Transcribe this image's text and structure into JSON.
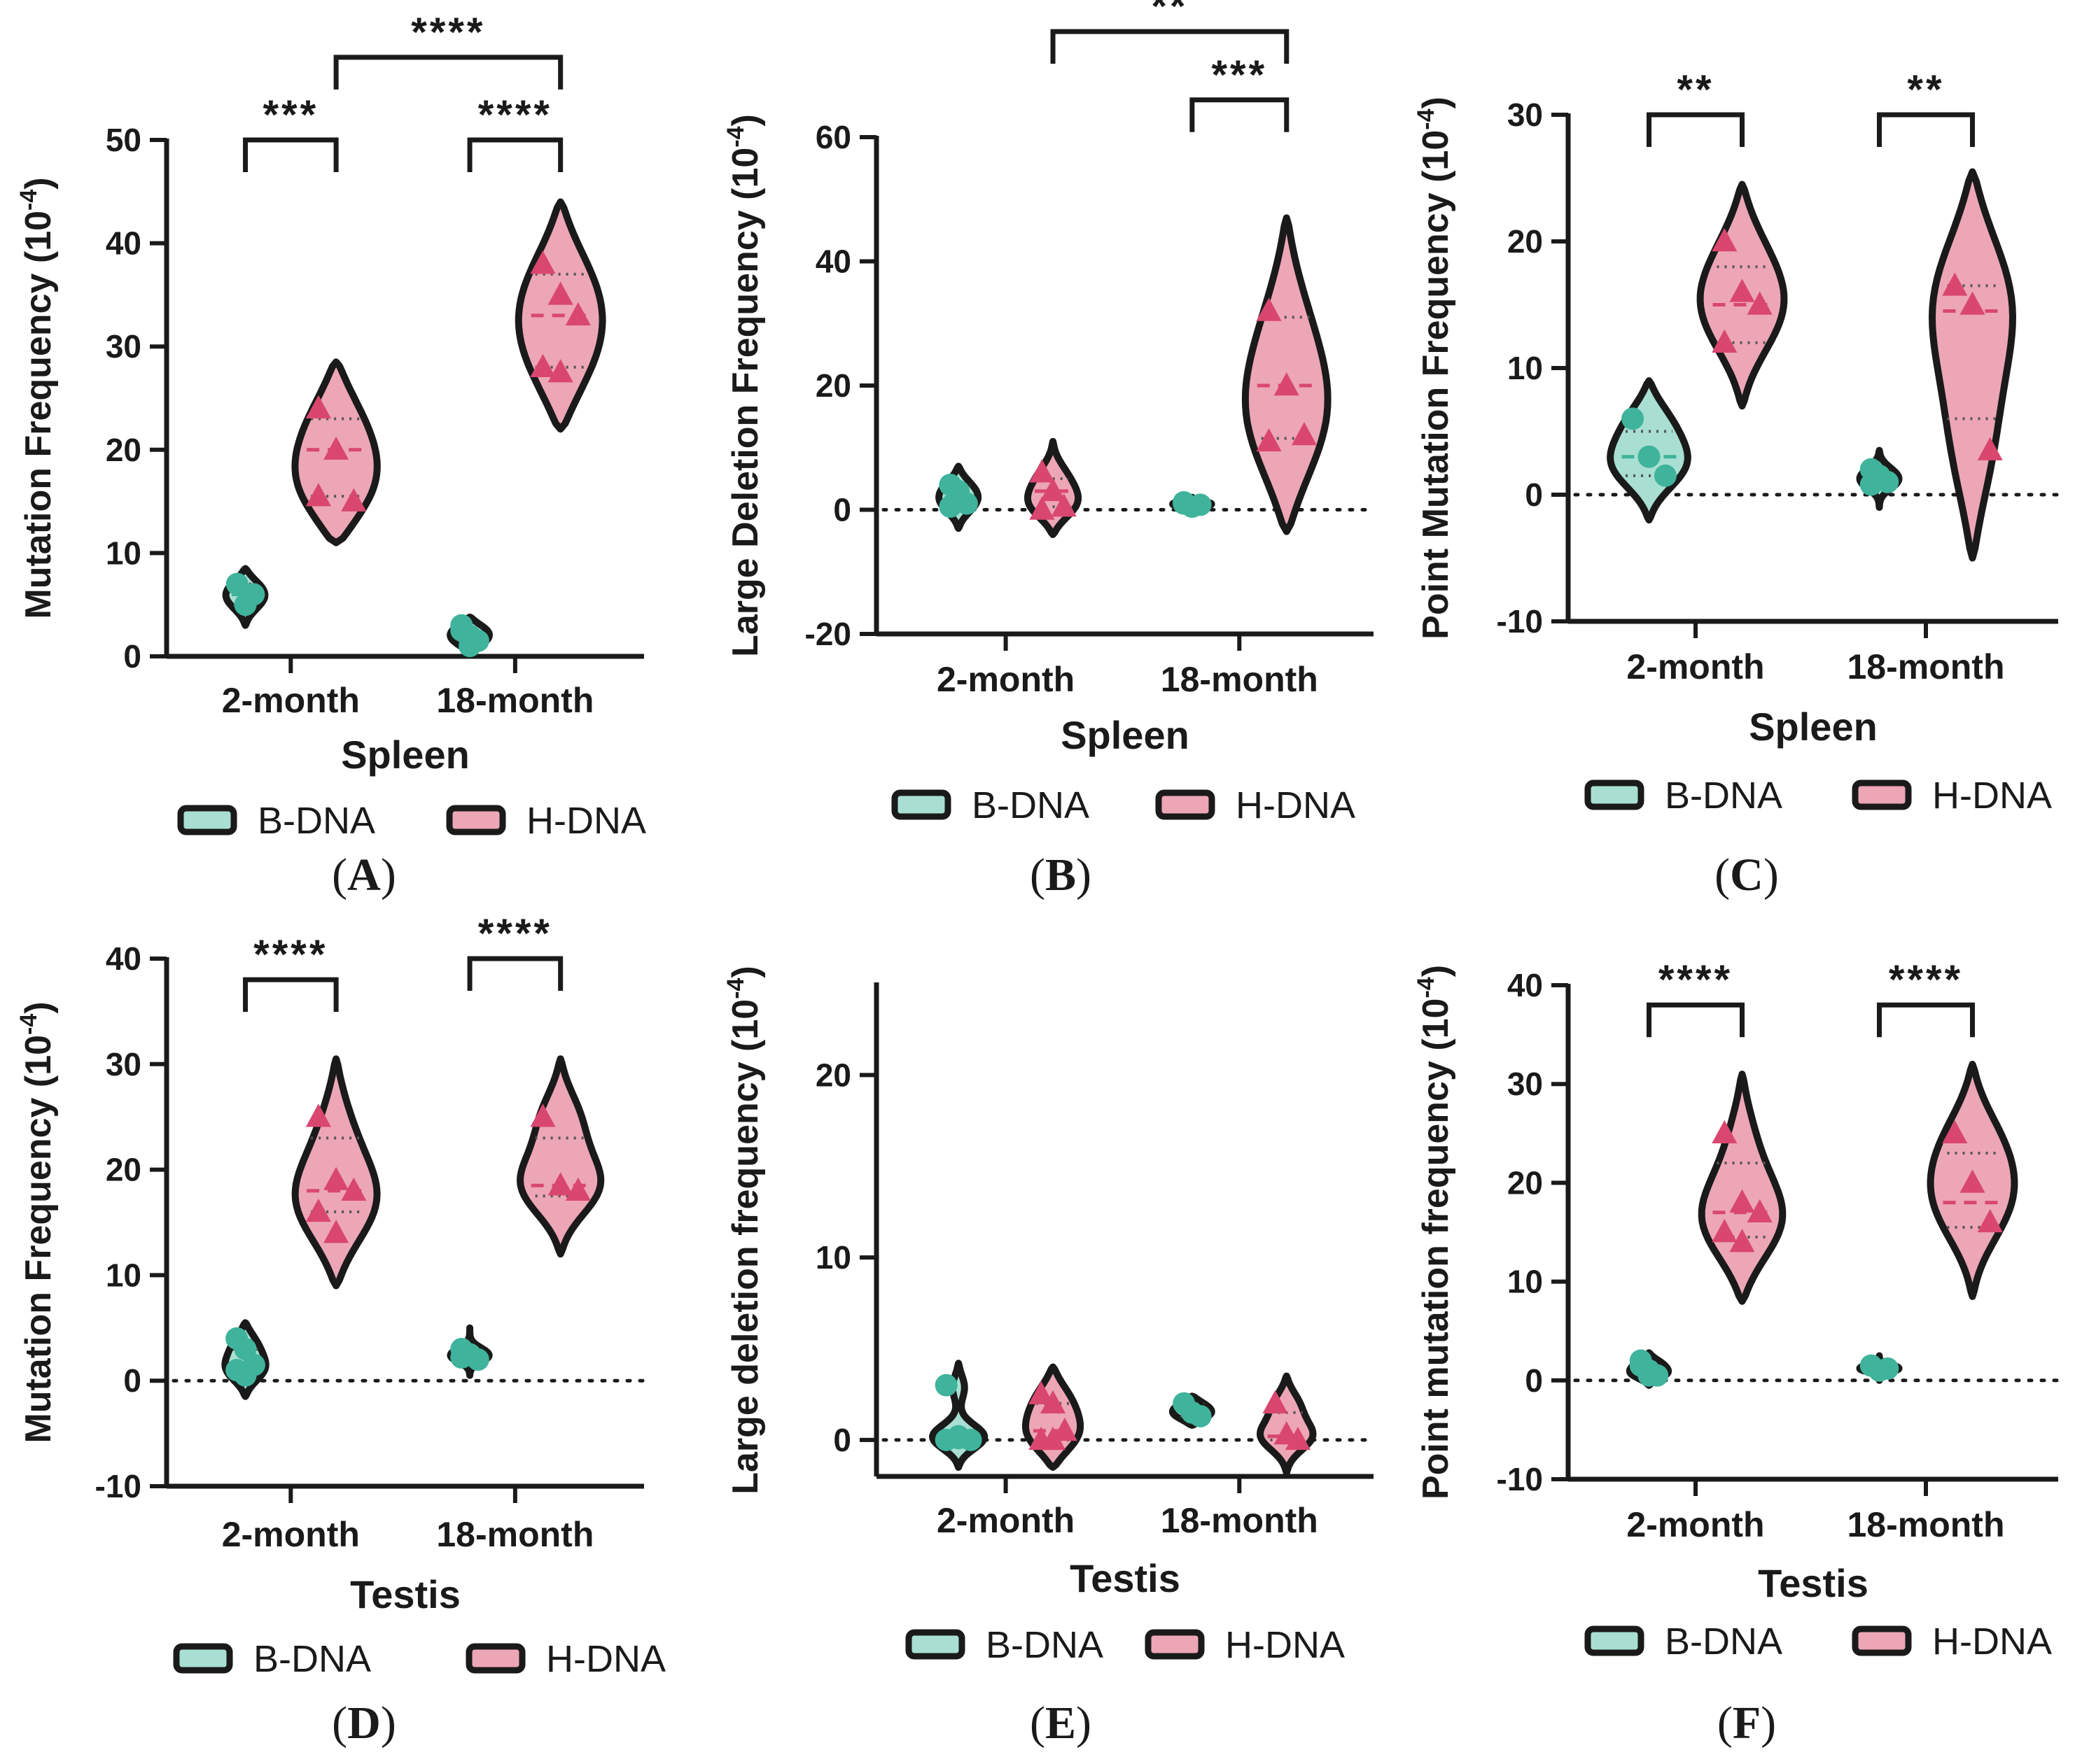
{
  "colors": {
    "b_dna_fill": "#a8dfd2",
    "b_dna_point": "#3fb39b",
    "h_dna_fill": "#eda6b6",
    "h_dna_point": "#d9476f",
    "axis": "#1a1a1a"
  },
  "legend": {
    "b_label": "B-DNA",
    "h_label": "H-DNA"
  },
  "chart_data": [
    {
      "panel": "A",
      "type": "violin",
      "ylabel": "Mutation Frequency (10",
      "ylabel_exp": "-4",
      "ylabel_close": ")",
      "xlabel": "Spleen",
      "ylim": [
        0,
        50
      ],
      "yticks": [
        0,
        10,
        20,
        30,
        40,
        50
      ],
      "yticks_text": [
        "0",
        "10",
        "20",
        "30",
        "40",
        "50"
      ],
      "categories": [
        "2-month",
        "18-month"
      ],
      "series": [
        {
          "name": "B-DNA",
          "groups": [
            {
              "points": [
                7,
                5,
                6
              ],
              "median": 6,
              "q1": 5,
              "q3": 7,
              "extent": [
                3,
                8.5
              ]
            },
            {
              "points": [
                3,
                2,
                1.5,
                2.5,
                1
              ],
              "median": 2,
              "q1": 1.5,
              "q3": 2.8,
              "extent": [
                0.5,
                3.8
              ]
            }
          ]
        },
        {
          "name": "H-DNA",
          "groups": [
            {
              "points": [
                24,
                20,
                15,
                15.5
              ],
              "median": 20,
              "q1": 15.5,
              "q3": 23,
              "extent": [
                11,
                28.5
              ]
            },
            {
              "points": [
                38,
                35,
                33,
                28,
                27.5
              ],
              "median": 33,
              "q1": 28,
              "q3": 37,
              "extent": [
                22,
                44
              ]
            }
          ]
        }
      ],
      "zero_line": false,
      "brackets": [
        {
          "from": [
            0,
            0
          ],
          "to": [
            0,
            1
          ],
          "level": 50,
          "stars": "***"
        },
        {
          "from": [
            1,
            0
          ],
          "to": [
            1,
            1
          ],
          "level": 50,
          "stars": "****"
        },
        {
          "from": [
            0,
            1
          ],
          "to": [
            1,
            1
          ],
          "level": 58,
          "stars": "****"
        }
      ],
      "label_prefix": "(",
      "label_letter": "A",
      "label_suffix": ")"
    },
    {
      "panel": "B",
      "type": "violin",
      "ylabel": "Large Deletion Frequency (10",
      "ylabel_exp": "-4",
      "ylabel_close": ")",
      "xlabel": "Spleen",
      "ylim": [
        -20,
        60
      ],
      "yticks": [
        -20,
        0,
        20,
        40,
        60
      ],
      "yticks_text": [
        "-20",
        "0",
        "20",
        "40",
        "60"
      ],
      "categories": [
        "2-month",
        "18-month"
      ],
      "series": [
        {
          "name": "B-DNA",
          "groups": [
            {
              "points": [
                4,
                3,
                1,
                0.5
              ],
              "median": 2,
              "q1": 0.5,
              "q3": 4,
              "extent": [
                -3,
                7
              ]
            },
            {
              "points": [
                1,
                0.5,
                0.8,
                1.2
              ],
              "median": 0.8,
              "q1": 0.5,
              "q3": 1.1,
              "extent": [
                0,
                2
              ]
            }
          ]
        },
        {
          "name": "H-DNA",
          "groups": [
            {
              "points": [
                6,
                3,
                0.5,
                0
              ],
              "median": 3,
              "q1": 0.5,
              "q3": 5,
              "extent": [
                -4,
                11
              ]
            },
            {
              "points": [
                32,
                20,
                12,
                11
              ],
              "median": 20,
              "q1": 11.5,
              "q3": 31,
              "extent": [
                -3.5,
                47
              ]
            }
          ]
        }
      ],
      "zero_line": true,
      "brackets": [
        {
          "from": [
            1,
            0
          ],
          "to": [
            1,
            1
          ],
          "level": 66,
          "stars": "***"
        },
        {
          "from": [
            0,
            1
          ],
          "to": [
            1,
            1
          ],
          "level": 77,
          "stars": "**"
        }
      ],
      "label_prefix": "(",
      "label_letter": "B",
      "label_suffix": ")"
    },
    {
      "panel": "C",
      "type": "violin",
      "ylabel": "Point Mutation Frequency (10",
      "ylabel_exp": "-4",
      "ylabel_close": ")",
      "xlabel": "Spleen",
      "ylim": [
        -10,
        30
      ],
      "yticks": [
        -10,
        0,
        10,
        20,
        30
      ],
      "yticks_text": [
        "-10",
        "0",
        "10",
        "20",
        "30"
      ],
      "categories": [
        "2-month",
        "18-month"
      ],
      "series": [
        {
          "name": "B-DNA",
          "groups": [
            {
              "points": [
                6,
                3,
                1.5
              ],
              "median": 3,
              "q1": 1.5,
              "q3": 5,
              "extent": [
                -2,
                9
              ]
            },
            {
              "points": [
                2,
                1.5,
                1,
                0.8
              ],
              "median": 1.2,
              "q1": 0.8,
              "q3": 2,
              "extent": [
                -1,
                3.5
              ]
            }
          ]
        },
        {
          "name": "H-DNA",
          "groups": [
            {
              "points": [
                20,
                16,
                15,
                12
              ],
              "median": 15,
              "q1": 12,
              "q3": 18,
              "extent": [
                7,
                24.5
              ]
            },
            {
              "points": [
                16.5,
                15,
                3.5
              ],
              "median": 14.5,
              "q1": 6,
              "q3": 16.5,
              "extent": [
                -5,
                25.5
              ]
            }
          ]
        }
      ],
      "zero_line": true,
      "brackets": [
        {
          "from": [
            0,
            0
          ],
          "to": [
            0,
            1
          ],
          "level": 30,
          "stars": "**"
        },
        {
          "from": [
            1,
            0
          ],
          "to": [
            1,
            1
          ],
          "level": 30,
          "stars": "**"
        }
      ],
      "label_prefix": "(",
      "label_letter": "C",
      "label_suffix": ")"
    },
    {
      "panel": "D",
      "type": "violin",
      "ylabel": "Mutation Frequency (10",
      "ylabel_exp": "-4",
      "ylabel_close": ")",
      "xlabel": "Testis",
      "ylim": [
        -10,
        40
      ],
      "yticks": [
        -10,
        0,
        10,
        20,
        30,
        40
      ],
      "yticks_text": [
        "-10",
        "0",
        "10",
        "20",
        "30",
        "40"
      ],
      "categories": [
        "2-month",
        "18-month"
      ],
      "series": [
        {
          "name": "B-DNA",
          "groups": [
            {
              "points": [
                4,
                3,
                1.5,
                1,
                0.5
              ],
              "median": 1.5,
              "q1": 0.8,
              "q3": 3,
              "extent": [
                -1.5,
                5.5
              ]
            },
            {
              "points": [
                3,
                2.5,
                2,
                2.2
              ],
              "median": 2.5,
              "q1": 2,
              "q3": 3,
              "extent": [
                0.5,
                5
              ]
            }
          ]
        },
        {
          "name": "H-DNA",
          "groups": [
            {
              "points": [
                25,
                19,
                18,
                16,
                14
              ],
              "median": 18,
              "q1": 16,
              "q3": 23,
              "extent": [
                9,
                30.5
              ]
            },
            {
              "points": [
                25,
                18.5,
                18
              ],
              "median": 18.5,
              "q1": 17.5,
              "q3": 23,
              "extent": [
                12,
                30.5
              ]
            }
          ]
        }
      ],
      "zero_line": true,
      "brackets": [
        {
          "from": [
            0,
            0
          ],
          "to": [
            0,
            1
          ],
          "level": 38,
          "stars": "****"
        },
        {
          "from": [
            1,
            0
          ],
          "to": [
            1,
            1
          ],
          "level": 40,
          "stars": "****"
        }
      ],
      "label_prefix": "(",
      "label_letter": "D",
      "label_suffix": ")"
    },
    {
      "panel": "E",
      "type": "violin",
      "ylabel": "Large deletion frequency (10",
      "ylabel_exp": "-4",
      "ylabel_close": ")",
      "xlabel": "Testis",
      "ylim": [
        -2,
        25
      ],
      "yticks": [
        0,
        10,
        20
      ],
      "yticks_text": [
        "0",
        "10",
        "20"
      ],
      "categories": [
        "2-month",
        "18-month"
      ],
      "series": [
        {
          "name": "B-DNA",
          "groups": [
            {
              "points": [
                3,
                0.2,
                0,
                0,
                0.1
              ],
              "median": 0.1,
              "q1": 0,
              "q3": 0.5,
              "extent": [
                -1.5,
                4.2
              ]
            },
            {
              "points": [
                2,
                1.5,
                1.3
              ],
              "median": 1.6,
              "q1": 1.3,
              "q3": 2,
              "extent": [
                0.8,
                2.4
              ]
            }
          ]
        },
        {
          "name": "H-DNA",
          "groups": [
            {
              "points": [
                2.5,
                2,
                0.5,
                0,
                0
              ],
              "median": 0.5,
              "q1": 0,
              "q3": 2,
              "extent": [
                -1.5,
                4
              ]
            },
            {
              "points": [
                2,
                0.3,
                0
              ],
              "median": 0.2,
              "q1": 0,
              "q3": 1.5,
              "extent": [
                -1.8,
                3.5
              ]
            }
          ]
        }
      ],
      "zero_line": true,
      "brackets": [],
      "label_prefix": "(",
      "label_letter": "E",
      "label_suffix": ")"
    },
    {
      "panel": "F",
      "type": "violin",
      "ylabel": "Point mutation frequency (10",
      "ylabel_exp": "-4",
      "ylabel_close": ")",
      "xlabel": "Testis",
      "ylim": [
        -10,
        40
      ],
      "yticks": [
        -10,
        0,
        10,
        20,
        30,
        40
      ],
      "yticks_text": [
        "-10",
        "0",
        "10",
        "20",
        "30",
        "40"
      ],
      "categories": [
        "2-month",
        "18-month"
      ],
      "series": [
        {
          "name": "B-DNA",
          "groups": [
            {
              "points": [
                2,
                1,
                0.5,
                1.5,
                0.5
              ],
              "median": 1,
              "q1": 0.5,
              "q3": 1.5,
              "extent": [
                -0.5,
                2.8
              ]
            },
            {
              "points": [
                1.5,
                1,
                1.2
              ],
              "median": 1.2,
              "q1": 1,
              "q3": 1.5,
              "extent": [
                0,
                2.5
              ]
            }
          ]
        },
        {
          "name": "H-DNA",
          "groups": [
            {
              "points": [
                25,
                18,
                17,
                15,
                14
              ],
              "median": 17,
              "q1": 14.5,
              "q3": 22,
              "extent": [
                8,
                31
              ]
            },
            {
              "points": [
                25,
                20,
                16
              ],
              "median": 18,
              "q1": 15.5,
              "q3": 23,
              "extent": [
                8.5,
                32
              ]
            }
          ]
        }
      ],
      "zero_line": true,
      "brackets": [
        {
          "from": [
            0,
            0
          ],
          "to": [
            0,
            1
          ],
          "level": 38,
          "stars": "****"
        },
        {
          "from": [
            1,
            0
          ],
          "to": [
            1,
            1
          ],
          "level": 38,
          "stars": "****"
        }
      ],
      "label_prefix": "(",
      "label_letter": "F",
      "label_suffix": ")"
    }
  ]
}
